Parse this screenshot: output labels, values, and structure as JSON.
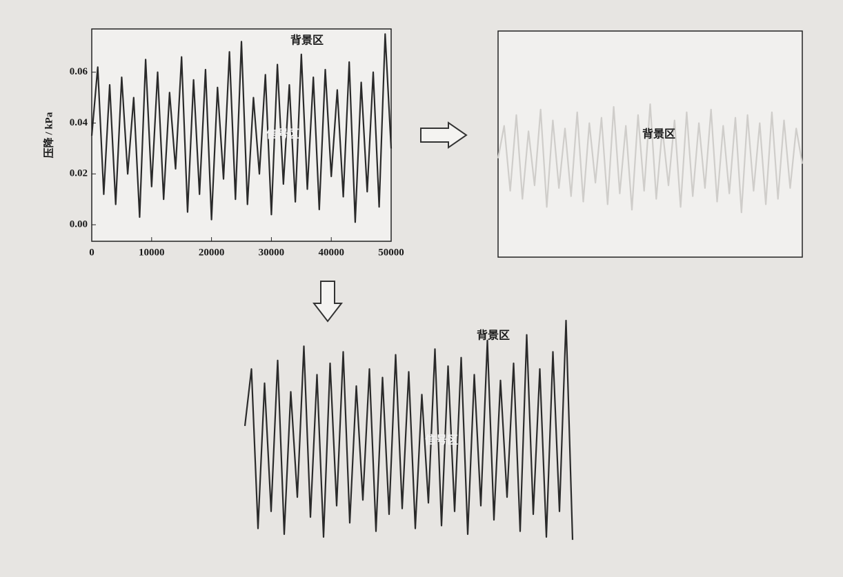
{
  "chart_data": [
    {
      "type": "line",
      "frame": true,
      "ylabel": "压降 / kPa",
      "annotations": [
        "背景区",
        "信号区"
      ],
      "xlim": [
        0,
        50000
      ],
      "ylim": [
        -0.0065,
        0.077
      ],
      "xticks": [
        0,
        10000,
        20000,
        30000,
        40000,
        50000
      ],
      "yticks": [
        {
          "value": 0,
          "label": "0.00"
        },
        0.02,
        0.04,
        0.06
      ],
      "x": [
        0,
        1000,
        2000,
        3000,
        4000,
        5000,
        6000,
        7000,
        8000,
        9000,
        10000,
        11000,
        12000,
        13000,
        14000,
        15000,
        16000,
        17000,
        18000,
        19000,
        20000,
        21000,
        22000,
        23000,
        24000,
        25000,
        26000,
        27000,
        28000,
        29000,
        30000,
        31000,
        32000,
        33000,
        34000,
        35000,
        36000,
        37000,
        38000,
        39000,
        40000,
        41000,
        42000,
        43000,
        44000,
        45000,
        46000,
        47000,
        48000,
        49000,
        50000
      ],
      "series": [
        {
          "color": "#2a2a2a",
          "values": [
            0.035,
            0.062,
            0.012,
            0.055,
            0.008,
            0.058,
            0.02,
            0.05,
            0.003,
            0.065,
            0.015,
            0.06,
            0.01,
            0.052,
            0.022,
            0.066,
            0.005,
            0.057,
            0.012,
            0.061,
            0.002,
            0.054,
            0.018,
            0.068,
            0.01,
            0.072,
            0.008,
            0.05,
            0.02,
            0.059,
            0.004,
            0.063,
            0.016,
            0.055,
            0.009,
            0.067,
            0.014,
            0.058,
            0.006,
            0.061,
            0.019,
            0.053,
            0.011,
            0.064,
            0.001,
            0.056,
            0.013,
            0.06,
            0.007,
            0.075,
            0.03
          ]
        }
      ]
    },
    {
      "type": "line",
      "frame": true,
      "annotations": [
        "背景区"
      ],
      "xlim": [
        0,
        50000
      ],
      "ylim": [
        -0.0065,
        0.077
      ],
      "x": [
        0,
        1000,
        2000,
        3000,
        4000,
        5000,
        6000,
        7000,
        8000,
        9000,
        10000,
        11000,
        12000,
        13000,
        14000,
        15000,
        16000,
        17000,
        18000,
        19000,
        20000,
        21000,
        22000,
        23000,
        24000,
        25000,
        26000,
        27000,
        28000,
        29000,
        30000,
        31000,
        32000,
        33000,
        34000,
        35000,
        36000,
        37000,
        38000,
        39000,
        40000,
        41000,
        42000,
        43000,
        44000,
        45000,
        46000,
        47000,
        48000,
        49000,
        50000
      ],
      "series": [
        {
          "color": "#cfcdca",
          "values": [
            0.03,
            0.042,
            0.018,
            0.046,
            0.015,
            0.04,
            0.02,
            0.048,
            0.012,
            0.044,
            0.019,
            0.041,
            0.016,
            0.047,
            0.014,
            0.043,
            0.021,
            0.045,
            0.013,
            0.049,
            0.017,
            0.042,
            0.011,
            0.046,
            0.018,
            0.05,
            0.015,
            0.041,
            0.02,
            0.044,
            0.012,
            0.047,
            0.016,
            0.043,
            0.019,
            0.048,
            0.014,
            0.042,
            0.017,
            0.045,
            0.01,
            0.046,
            0.018,
            0.043,
            0.013,
            0.047,
            0.015,
            0.044,
            0.019,
            0.041,
            0.028
          ]
        }
      ]
    },
    {
      "type": "line",
      "frame": false,
      "annotations": [
        "背景区",
        "信号区"
      ],
      "xlim": [
        0,
        50000
      ],
      "ylim": [
        -0.0065,
        0.077
      ],
      "x": [
        0,
        1000,
        2000,
        3000,
        4000,
        5000,
        6000,
        7000,
        8000,
        9000,
        10000,
        11000,
        12000,
        13000,
        14000,
        15000,
        16000,
        17000,
        18000,
        19000,
        20000,
        21000,
        22000,
        23000,
        24000,
        25000,
        26000,
        27000,
        28000,
        29000,
        30000,
        31000,
        32000,
        33000,
        34000,
        35000,
        36000,
        37000,
        38000,
        39000,
        40000,
        41000,
        42000,
        43000,
        44000,
        45000,
        46000,
        47000,
        48000,
        49000,
        50000
      ],
      "series": [
        {
          "color": "#2a2a2a",
          "values": [
            0.04,
            0.06,
            0.004,
            0.055,
            0.01,
            0.063,
            0.002,
            0.052,
            0.015,
            0.068,
            0.008,
            0.058,
            0.001,
            0.062,
            0.012,
            0.066,
            0.006,
            0.054,
            0.014,
            0.06,
            0.003,
            0.057,
            0.009,
            0.065,
            0.011,
            0.059,
            0.004,
            0.051,
            0.013,
            0.067,
            0.005,
            0.061,
            0.01,
            0.064,
            0.002,
            0.058,
            0.012,
            0.07,
            0.007,
            0.056,
            0.015,
            0.062,
            0.003,
            0.072,
            0.009,
            0.06,
            0.001,
            0.066,
            0.01,
            0.077,
            0.0
          ]
        }
      ]
    }
  ]
}
